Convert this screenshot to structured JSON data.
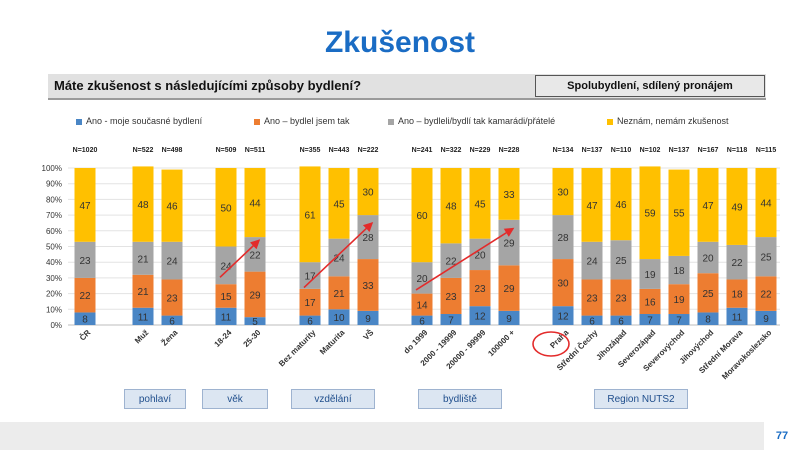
{
  "title": "Zkušenost",
  "question": "Máte zkušenost s následujícími způsoby bydlení?",
  "topic": "Spolubydlení, sdílený pronájem",
  "page_number": "77",
  "groups": [
    "pohlaví",
    "věk",
    "vzdělání",
    "bydliště",
    "Region NUTS2"
  ],
  "chart_data": {
    "type": "bar",
    "stacked": true,
    "percent": true,
    "ylim": [
      0,
      100
    ],
    "yticks": [
      "0%",
      "10%",
      "20%",
      "30%",
      "40%",
      "50%",
      "60%",
      "70%",
      "80%",
      "90%",
      "100%"
    ],
    "categories": [
      "ČR",
      "Muž",
      "Žena",
      "18-24",
      "25-30",
      "Bez maturity",
      "Maturita",
      "VŠ",
      "do 1999",
      "2000 - 19999",
      "20000 - 99999",
      "100000 +",
      "Praha",
      "Střední Čechy",
      "Jihozápad",
      "Severozápad",
      "Severovýchod",
      "Jihovýchod",
      "Střední Morava",
      "Moravskoslezsko"
    ],
    "n_labels": [
      "N=1020",
      "N=522",
      "N=498",
      "N=509",
      "N=511",
      "N=355",
      "N=443",
      "N=222",
      "N=241",
      "N=322",
      "N=229",
      "N=228",
      "N=134",
      "N=137",
      "N=110",
      "N=102",
      "N=137",
      "N=167",
      "N=118",
      "N=115"
    ],
    "series": [
      {
        "name": "Ano - moje současné bydlení",
        "color": "#4a86c5",
        "values": [
          8,
          11,
          6,
          11,
          5,
          6,
          10,
          9,
          6,
          7,
          12,
          9,
          12,
          6,
          6,
          7,
          7,
          8,
          11,
          9
        ]
      },
      {
        "name": "Ano – bydlel jsem tak",
        "color": "#ed7d31",
        "values": [
          22,
          21,
          23,
          15,
          29,
          17,
          21,
          33,
          14,
          23,
          23,
          29,
          30,
          23,
          23,
          16,
          19,
          25,
          18,
          22
        ]
      },
      {
        "name": "Ano – bydleli/bydlí tak kamarádi/přátelé",
        "color": "#a5a5a5",
        "values": [
          23,
          21,
          24,
          24,
          22,
          17,
          24,
          28,
          20,
          22,
          20,
          29,
          28,
          24,
          25,
          19,
          18,
          20,
          22,
          25
        ]
      },
      {
        "name": "Neznám, nemám zkušenost",
        "color": "#ffc000",
        "values": [
          47,
          48,
          46,
          50,
          44,
          61,
          45,
          30,
          60,
          48,
          45,
          33,
          30,
          47,
          46,
          59,
          55,
          47,
          49,
          44
        ]
      }
    ],
    "legend_position": "top"
  }
}
